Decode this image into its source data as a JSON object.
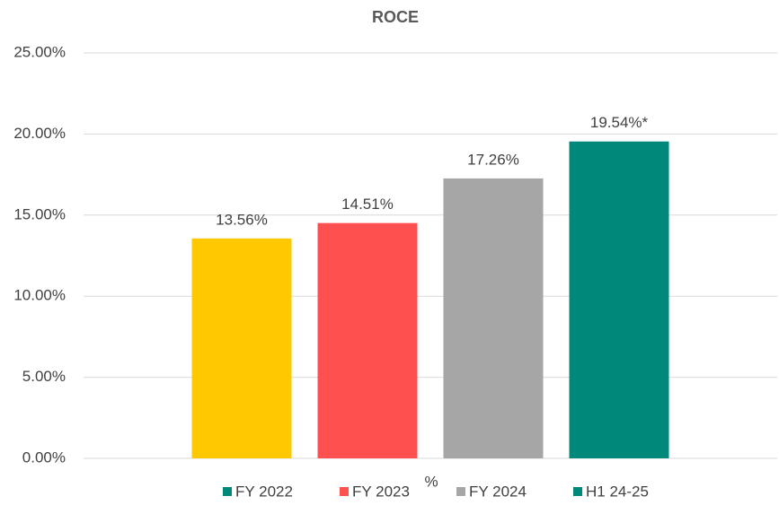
{
  "chart_data": {
    "type": "bar",
    "title": "ROCE",
    "x_label": "%",
    "series": [
      {
        "name": "FY 2022",
        "color": "#ffc800",
        "legend_color": "#00897b",
        "values": [
          13.56
        ],
        "value_labels": [
          "13.56%"
        ]
      },
      {
        "name": "FY 2023",
        "color": "#ff5050",
        "legend_color": "#ff5050",
        "values": [
          14.51
        ],
        "value_labels": [
          "14.51%"
        ]
      },
      {
        "name": "FY 2024",
        "color": "#a6a6a6",
        "legend_color": "#a6a6a6",
        "values": [
          17.26
        ],
        "value_labels": [
          "17.26%"
        ]
      },
      {
        "name": "H1 24-25",
        "color": "#00897b",
        "legend_color": "#00897b",
        "values": [
          19.54
        ],
        "value_labels": [
          "19.54%*"
        ]
      }
    ],
    "ylim": [
      0,
      25
    ],
    "yticks": [
      {
        "value": 0,
        "label": "0.00%"
      },
      {
        "value": 5,
        "label": "5.00%"
      },
      {
        "value": 10,
        "label": "10.00%"
      },
      {
        "value": 15,
        "label": "15.00%"
      },
      {
        "value": 20,
        "label": "20.00%"
      },
      {
        "value": 25,
        "label": "25.00%"
      }
    ],
    "grid": true,
    "legend": "bottom"
  }
}
